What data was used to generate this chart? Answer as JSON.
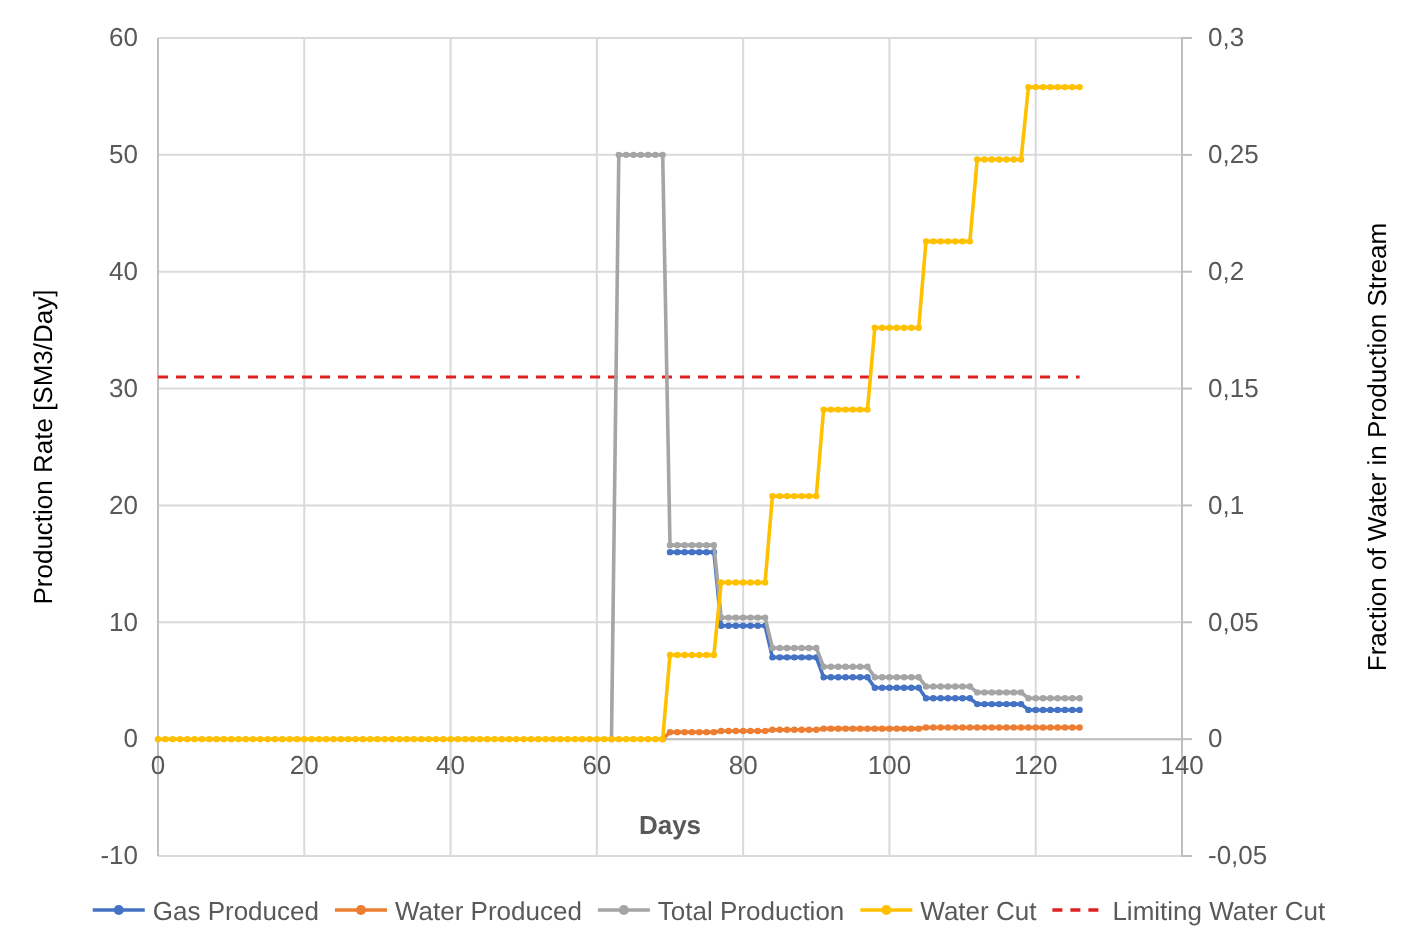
{
  "chart_data": {
    "type": "line",
    "xlabel": "Days",
    "ylabel": "Production Rate [SM3/Day]",
    "y2label": "Fraction of Water in Production Stream",
    "x": [
      0,
      1,
      2,
      3,
      4,
      5,
      6,
      7,
      8,
      9,
      10,
      11,
      12,
      13,
      14,
      15,
      16,
      17,
      18,
      19,
      20,
      21,
      22,
      23,
      24,
      25,
      26,
      27,
      28,
      29,
      30,
      31,
      32,
      33,
      34,
      35,
      36,
      37,
      38,
      39,
      40,
      41,
      42,
      43,
      44,
      45,
      46,
      47,
      48,
      49,
      50,
      51,
      52,
      53,
      54,
      55,
      56,
      57,
      58,
      59,
      60,
      61,
      62,
      63,
      64,
      65,
      66,
      67,
      68,
      69,
      70,
      71,
      72,
      73,
      74,
      75,
      76,
      77,
      78,
      79,
      80,
      81,
      82,
      83,
      84,
      85,
      86,
      87,
      88,
      89,
      90,
      91,
      92,
      93,
      94,
      95,
      96,
      97,
      98,
      99,
      100,
      101,
      102,
      103,
      104,
      105,
      106,
      107,
      108,
      109,
      110,
      111,
      112,
      113,
      114,
      115,
      116,
      117,
      118,
      119,
      120,
      121,
      122,
      123,
      124,
      125,
      126
    ],
    "series": [
      {
        "name": "Gas Produced",
        "color": "#4472c4",
        "values": [
          null,
          null,
          null,
          null,
          null,
          null,
          null,
          null,
          null,
          null,
          null,
          null,
          null,
          null,
          null,
          null,
          null,
          null,
          null,
          null,
          null,
          null,
          null,
          null,
          null,
          null,
          null,
          null,
          null,
          null,
          null,
          null,
          null,
          null,
          null,
          null,
          null,
          null,
          null,
          null,
          null,
          null,
          null,
          null,
          null,
          null,
          null,
          null,
          null,
          null,
          null,
          null,
          null,
          null,
          null,
          null,
          null,
          null,
          null,
          null,
          null,
          null,
          null,
          null,
          null,
          null,
          null,
          null,
          null,
          null,
          16,
          16,
          16,
          16,
          16,
          16,
          16,
          9.7,
          9.7,
          9.7,
          9.7,
          9.7,
          9.7,
          9.7,
          7,
          7,
          7,
          7,
          7,
          7,
          7,
          5.3,
          5.3,
          5.3,
          5.3,
          5.3,
          5.3,
          5.3,
          4.4,
          4.4,
          4.4,
          4.4,
          4.4,
          4.4,
          4.4,
          3.5,
          3.5,
          3.5,
          3.5,
          3.5,
          3.5,
          3.5,
          3,
          3,
          3,
          3,
          3,
          3,
          3,
          2.5,
          2.5,
          2.5,
          2.5,
          2.5,
          2.5,
          2.5,
          2.5
        ]
      },
      {
        "name": "Water Produced",
        "color": "#ed7d31",
        "values": [
          null,
          null,
          null,
          null,
          null,
          null,
          null,
          null,
          null,
          null,
          null,
          null,
          null,
          null,
          null,
          null,
          null,
          null,
          null,
          null,
          null,
          null,
          null,
          null,
          null,
          null,
          null,
          null,
          null,
          null,
          null,
          null,
          null,
          null,
          null,
          null,
          null,
          null,
          null,
          null,
          null,
          null,
          null,
          null,
          null,
          null,
          null,
          null,
          null,
          null,
          null,
          null,
          null,
          null,
          null,
          null,
          null,
          null,
          null,
          null,
          null,
          null,
          null,
          null,
          null,
          null,
          null,
          null,
          null,
          0,
          0.6,
          0.6,
          0.6,
          0.6,
          0.6,
          0.6,
          0.6,
          0.7,
          0.7,
          0.7,
          0.7,
          0.7,
          0.7,
          0.7,
          0.8,
          0.8,
          0.8,
          0.8,
          0.8,
          0.8,
          0.8,
          0.9,
          0.9,
          0.9,
          0.9,
          0.9,
          0.9,
          0.9,
          0.9,
          0.9,
          0.9,
          0.9,
          0.9,
          0.9,
          0.9,
          1,
          1,
          1,
          1,
          1,
          1,
          1,
          1,
          1,
          1,
          1,
          1,
          1,
          1,
          1,
          1,
          1,
          1,
          1,
          1,
          1,
          1
        ]
      },
      {
        "name": "Total Production",
        "color": "#a5a5a5",
        "values": [
          null,
          null,
          null,
          null,
          null,
          null,
          null,
          null,
          null,
          null,
          null,
          null,
          null,
          null,
          null,
          null,
          null,
          null,
          null,
          null,
          null,
          null,
          null,
          null,
          null,
          null,
          null,
          null,
          null,
          null,
          null,
          null,
          null,
          null,
          null,
          null,
          null,
          null,
          null,
          null,
          null,
          null,
          null,
          null,
          null,
          null,
          null,
          null,
          null,
          null,
          null,
          null,
          null,
          null,
          null,
          null,
          null,
          null,
          null,
          null,
          null,
          null,
          0,
          50,
          50,
          50,
          50,
          50,
          50,
          50,
          16.6,
          16.6,
          16.6,
          16.6,
          16.6,
          16.6,
          16.6,
          10.4,
          10.4,
          10.4,
          10.4,
          10.4,
          10.4,
          10.4,
          7.8,
          7.8,
          7.8,
          7.8,
          7.8,
          7.8,
          7.8,
          6.2,
          6.2,
          6.2,
          6.2,
          6.2,
          6.2,
          6.2,
          5.3,
          5.3,
          5.3,
          5.3,
          5.3,
          5.3,
          5.3,
          4.5,
          4.5,
          4.5,
          4.5,
          4.5,
          4.5,
          4.5,
          4,
          4,
          4,
          4,
          4,
          4,
          4,
          3.5,
          3.5,
          3.5,
          3.5,
          3.5,
          3.5,
          3.5,
          3.5
        ]
      },
      {
        "name": "Water Cut",
        "color": "#ffc000",
        "axis": "y2",
        "values": [
          0,
          0,
          0,
          0,
          0,
          0,
          0,
          0,
          0,
          0,
          0,
          0,
          0,
          0,
          0,
          0,
          0,
          0,
          0,
          0,
          0,
          0,
          0,
          0,
          0,
          0,
          0,
          0,
          0,
          0,
          0,
          0,
          0,
          0,
          0,
          0,
          0,
          0,
          0,
          0,
          0,
          0,
          0,
          0,
          0,
          0,
          0,
          0,
          0,
          0,
          0,
          0,
          0,
          0,
          0,
          0,
          0,
          0,
          0,
          0,
          0,
          0,
          0,
          0,
          0,
          0,
          0,
          0,
          0,
          0,
          0.036,
          0.036,
          0.036,
          0.036,
          0.036,
          0.036,
          0.036,
          0.067,
          0.067,
          0.067,
          0.067,
          0.067,
          0.067,
          0.067,
          0.104,
          0.104,
          0.104,
          0.104,
          0.104,
          0.104,
          0.104,
          0.141,
          0.141,
          0.141,
          0.141,
          0.141,
          0.141,
          0.141,
          0.176,
          0.176,
          0.176,
          0.176,
          0.176,
          0.176,
          0.176,
          0.213,
          0.213,
          0.213,
          0.213,
          0.213,
          0.213,
          0.213,
          0.248,
          0.248,
          0.248,
          0.248,
          0.248,
          0.248,
          0.248,
          0.279,
          0.279,
          0.279,
          0.279,
          0.279,
          0.279,
          0.279,
          0.279
        ]
      }
    ],
    "ref_lines": [
      {
        "axis": "y2",
        "value": 0.155,
        "label": "Limiting Water Cut",
        "color": "#e02020",
        "line_style": "dashed"
      }
    ],
    "xlim": [
      0,
      140
    ],
    "xticks": [
      0,
      20,
      40,
      60,
      80,
      100,
      120,
      140
    ],
    "ylim": [
      -10,
      60
    ],
    "yticks": [
      -10,
      0,
      10,
      20,
      30,
      40,
      50,
      60
    ],
    "y2lim": [
      -0.05,
      0.3
    ],
    "y2ticks": [
      {
        "value": -0.05,
        "label": "-0,05"
      },
      {
        "value": 0,
        "label": "0"
      },
      {
        "value": 0.05,
        "label": "0,05"
      },
      {
        "value": 0.1,
        "label": "0,1"
      },
      {
        "value": 0.15,
        "label": "0,15"
      },
      {
        "value": 0.2,
        "label": "0,2"
      },
      {
        "value": 0.25,
        "label": "0,25"
      },
      {
        "value": 0.3,
        "label": "0,3"
      }
    ],
    "grid": true,
    "legend": "bottom",
    "marker": "circle",
    "line_style": "solid"
  }
}
